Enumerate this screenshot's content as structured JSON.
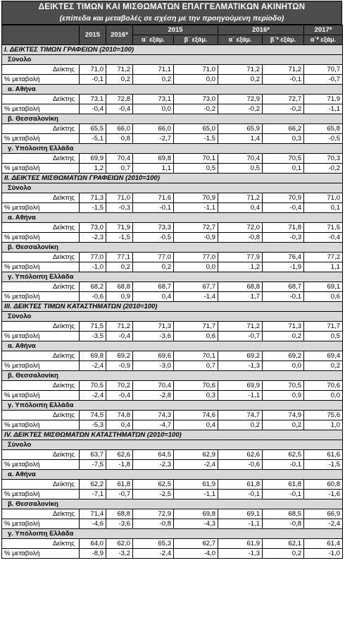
{
  "title": "ΔΕΙΚΤΕΣ ΤΙΜΩΝ ΚΑΙ ΜΙΣΘΩΜΑΤΩΝ ΕΠΑΓΓΕΛΜΑΤΙΚΩΝ ΑΚΙΝΗΤΩΝ",
  "subtitle": "(επίπεδα και μεταβολές σε σχέση με την προηγούμενη περίοδο)",
  "header": {
    "row1": [
      "2015",
      "2016*",
      "2015",
      "2016*",
      "2017*"
    ],
    "row2": [
      "α΄ εξάμ.",
      "β΄ εξάμ.",
      "α΄ εξάμ.",
      "β΄* εξάμ.",
      "α΄* εξάμ."
    ]
  },
  "sections": [
    {
      "title": "I. ΔΕΙΚΤΕΣ ΤΙΜΩΝ ΓΡΑΦΕΙΩΝ (2010=100)",
      "groups": [
        {
          "name": "Σύνολο",
          "rows": [
            {
              "label": "Δείκτης",
              "values": [
                "71,0",
                "71,2",
                "71,1",
                "71,0",
                "71,2",
                "71,2",
                "70,7"
              ]
            },
            {
              "label": "% μεταβολή",
              "values": [
                "-0,1",
                "0,2",
                "0,2",
                "0,0",
                "0,2",
                "-0,1",
                "-0,7"
              ]
            }
          ]
        },
        {
          "name": "α. Αθήνα",
          "rows": [
            {
              "label": "Δείκτης",
              "values": [
                "73,1",
                "72,8",
                "73,1",
                "73,0",
                "72,9",
                "72,7",
                "71,9"
              ]
            },
            {
              "label": "% μεταβολή",
              "values": [
                "-0,4",
                "-0,4",
                "0,0",
                "-0,2",
                "-0,2",
                "-0,2",
                "-1,1"
              ]
            }
          ]
        },
        {
          "name": "β. Θεσσαλονίκη",
          "rows": [
            {
              "label": "Δείκτης",
              "values": [
                "65,5",
                "66,0",
                "66,0",
                "65,0",
                "65,9",
                "66,2",
                "65,8"
              ]
            },
            {
              "label": "% μεταβολή",
              "values": [
                "-5,1",
                "0,8",
                "-2,7",
                "-1,5",
                "1,4",
                "0,3",
                "-0,5"
              ]
            }
          ]
        },
        {
          "name": "γ. Υπόλοιπη Ελλάδα",
          "rows": [
            {
              "label": "Δείκτης",
              "values": [
                "69,9",
                "70,4",
                "69,8",
                "70,1",
                "70,4",
                "70,5",
                "70,3"
              ]
            },
            {
              "label": "% μεταβολή",
              "values": [
                "1,2",
                "0,7",
                "1,1",
                "0,5",
                "0,5",
                "0,1",
                "-0,2"
              ]
            }
          ]
        }
      ]
    },
    {
      "title": "II. ΔΕΙΚΤΕΣ ΜΙΣΘΩΜΑΤΩΝ ΓΡΑΦΕΙΩΝ (2010=100)",
      "groups": [
        {
          "name": "Σύνολο",
          "rows": [
            {
              "label": "Δείκτης",
              "values": [
                "71,3",
                "71,0",
                "71,6",
                "70,9",
                "71,2",
                "70,9",
                "71,0"
              ]
            },
            {
              "label": "% μεταβολή",
              "values": [
                "-1,5",
                "-0,3",
                "-0,1",
                "-1,1",
                "0,4",
                "-0,4",
                "0,1"
              ]
            }
          ]
        },
        {
          "name": "α. Αθήνα",
          "rows": [
            {
              "label": "Δείκτης",
              "values": [
                "73,0",
                "71,9",
                "73,3",
                "72,7",
                "72,0",
                "71,8",
                "71,5"
              ]
            },
            {
              "label": "% μεταβολή",
              "values": [
                "-2,3",
                "-1,5",
                "-0,5",
                "-0,9",
                "-0,8",
                "-0,3",
                "-0,4"
              ]
            }
          ]
        },
        {
          "name": "β. Θεσσαλονίκη",
          "rows": [
            {
              "label": "Δείκτης",
              "values": [
                "77,0",
                "77,1",
                "77,0",
                "77,0",
                "77,9",
                "76,4",
                "77,2"
              ]
            },
            {
              "label": "% μεταβολή",
              "values": [
                "-1,0",
                "0,2",
                "0,2",
                "0,0",
                "1,2",
                "-1,9",
                "1,1"
              ]
            }
          ]
        },
        {
          "name": "γ. Υπόλοιπη Ελλάδα",
          "rows": [
            {
              "label": "Δείκτης",
              "values": [
                "68,2",
                "68,8",
                "68,7",
                "67,7",
                "68,8",
                "68,7",
                "69,1"
              ]
            },
            {
              "label": "% μεταβολή",
              "values": [
                "-0,6",
                "0,9",
                "0,4",
                "-1,4",
                "1,7",
                "-0,1",
                "0,6"
              ]
            }
          ]
        }
      ]
    },
    {
      "title": "III. ΔΕΙΚΤΕΣ ΤΙΜΩΝ ΚΑΤΑΣΤΗΜΑΤΩΝ (2010=100)",
      "groups": [
        {
          "name": "Σύνολο",
          "rows": [
            {
              "label": "Δείκτης",
              "values": [
                "71,5",
                "71,2",
                "71,3",
                "71,7",
                "71,2",
                "71,3",
                "71,7"
              ]
            },
            {
              "label": "% μεταβολή",
              "values": [
                "-3,5",
                "-0,4",
                "-3,6",
                "0,6",
                "-0,7",
                "0,2",
                "0,5"
              ]
            }
          ]
        },
        {
          "name": "α. Αθήνα",
          "rows": [
            {
              "label": "Δείκτης",
              "values": [
                "69,8",
                "69,2",
                "69,6",
                "70,1",
                "69,2",
                "69,2",
                "69,4"
              ]
            },
            {
              "label": "% μεταβολή",
              "values": [
                "-2,4",
                "-0,9",
                "-3,0",
                "0,7",
                "-1,3",
                "0,0",
                "0,2"
              ]
            }
          ]
        },
        {
          "name": "β. Θεσσαλονίκη",
          "rows": [
            {
              "label": "Δείκτης",
              "values": [
                "70,5",
                "70,2",
                "70,4",
                "70,6",
                "69,9",
                "70,5",
                "70,6"
              ]
            },
            {
              "label": "% μεταβολή",
              "values": [
                "-2,4",
                "-0,4",
                "-2,8",
                "0,3",
                "-1,1",
                "0,9",
                "0,0"
              ]
            }
          ]
        },
        {
          "name": "γ. Υπόλοιπη Ελλάδα",
          "rows": [
            {
              "label": "Δείκτης",
              "values": [
                "74,5",
                "74,8",
                "74,3",
                "74,6",
                "74,7",
                "74,9",
                "75,6"
              ]
            },
            {
              "label": "% μεταβολή",
              "values": [
                "-5,3",
                "0,4",
                "-4,7",
                "0,4",
                "0,2",
                "0,2",
                "1,0"
              ]
            }
          ]
        }
      ]
    },
    {
      "title": "IV. ΔΕΙΚΤΕΣ ΜΙΣΘΩΜΑΤΩΝ ΚΑΤΑΣΤΗΜΑΤΩΝ (2010=100)",
      "groups": [
        {
          "name": "Σύνολο",
          "rows": [
            {
              "label": "Δείκτης",
              "values": [
                "63,7",
                "62,6",
                "64,5",
                "62,9",
                "62,6",
                "62,5",
                "61,6"
              ]
            },
            {
              "label": "% μεταβολή",
              "values": [
                "-7,5",
                "-1,8",
                "-2,3",
                "-2,4",
                "-0,6",
                "-0,1",
                "-1,5"
              ]
            }
          ]
        },
        {
          "name": "α. Αθήνα",
          "rows": [
            {
              "label": "Δείκτης",
              "values": [
                "62,2",
                "61,8",
                "62,5",
                "61,9",
                "61,8",
                "61,8",
                "60,8"
              ]
            },
            {
              "label": "% μεταβολή",
              "values": [
                "-7,1",
                "-0,7",
                "-2,5",
                "-1,1",
                "-0,1",
                "-0,1",
                "-1,6"
              ]
            }
          ]
        },
        {
          "name": "β. Θεσσαλονίκη",
          "rows": [
            {
              "label": "Δείκτης",
              "values": [
                "71,4",
                "68,8",
                "72,9",
                "69,8",
                "69,1",
                "68,5",
                "66,9"
              ]
            },
            {
              "label": "% μεταβολή",
              "values": [
                "-4,6",
                "-3,6",
                "-0,8",
                "-4,3",
                "-1,1",
                "-0,8",
                "-2,4"
              ]
            }
          ]
        },
        {
          "name": "γ. Υπόλοιπη Ελλάδα",
          "rows": [
            {
              "label": "Δείκτης",
              "values": [
                "64,0",
                "62,0",
                "65,3",
                "62,7",
                "61,9",
                "62,1",
                "61,4"
              ]
            },
            {
              "label": "% μεταβολή",
              "values": [
                "-8,9",
                "-3,2",
                "-2,4",
                "-4,0",
                "-1,3",
                "0,2",
                "-1,0"
              ]
            }
          ]
        }
      ]
    }
  ]
}
